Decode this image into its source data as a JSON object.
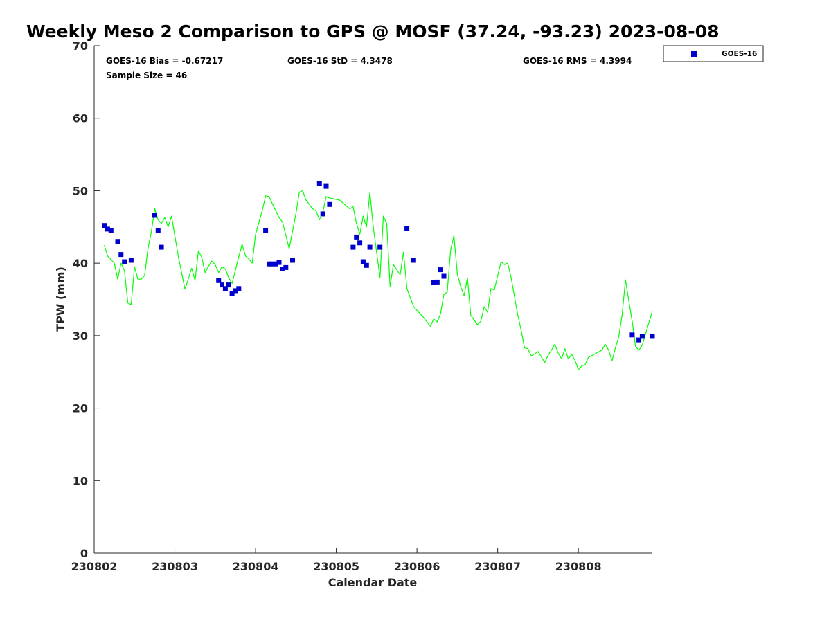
{
  "colors": {
    "gps_line": "#00ff00",
    "goes_marker": "#0000cc",
    "axis": "#262626"
  },
  "chart_data": {
    "type": "scatter",
    "title": "Weekly Meso 2 Comparison to GPS @ MOSF (37.24, -93.23) 2023-08-08",
    "xlabel": "Calendar Date",
    "ylabel": "TPW (mm)",
    "x_ticks": [
      "230802",
      "230803",
      "230804",
      "230805",
      "230806",
      "230807",
      "230808"
    ],
    "y_ticks": [
      "0",
      "10",
      "20",
      "30",
      "40",
      "50",
      "60",
      "70"
    ],
    "xlim": [
      "2023-08-02",
      "2023-08-08 22:00"
    ],
    "ylim": [
      0,
      70
    ],
    "stats": {
      "bias": "GOES-16 Bias = -0.67217",
      "std": "GOES-16 StD = 4.3478",
      "rms": "GOES-16 RMS = 4.3994",
      "sample": "Sample Size = 46"
    },
    "legend": {
      "position": "top-right",
      "entries": [
        "GOES-16"
      ]
    },
    "series": [
      {
        "name": "GOES-16",
        "kind": "scatter",
        "points": [
          [
            "2023-08-02 03:00",
            45.2
          ],
          [
            "2023-08-02 04:00",
            44.7
          ],
          [
            "2023-08-02 05:00",
            44.5
          ],
          [
            "2023-08-02 07:00",
            43.0
          ],
          [
            "2023-08-02 08:00",
            41.2
          ],
          [
            "2023-08-02 09:00",
            40.2
          ],
          [
            "2023-08-02 11:00",
            40.4
          ],
          [
            "2023-08-02 18:00",
            46.6
          ],
          [
            "2023-08-02 19:00",
            44.5
          ],
          [
            "2023-08-02 20:00",
            42.2
          ],
          [
            "2023-08-03 13:00",
            37.6
          ],
          [
            "2023-08-03 14:00",
            37.0
          ],
          [
            "2023-08-03 15:00",
            36.5
          ],
          [
            "2023-08-03 16:00",
            37.0
          ],
          [
            "2023-08-03 17:00",
            35.8
          ],
          [
            "2023-08-03 18:00",
            36.2
          ],
          [
            "2023-08-03 19:00",
            36.5
          ],
          [
            "2023-08-04 03:00",
            44.5
          ],
          [
            "2023-08-04 04:00",
            39.9
          ],
          [
            "2023-08-04 05:00",
            39.9
          ],
          [
            "2023-08-04 06:00",
            39.9
          ],
          [
            "2023-08-04 07:00",
            40.1
          ],
          [
            "2023-08-04 08:00",
            39.2
          ],
          [
            "2023-08-04 09:00",
            39.4
          ],
          [
            "2023-08-04 11:00",
            40.4
          ],
          [
            "2023-08-04 19:00",
            51.0
          ],
          [
            "2023-08-04 20:00",
            46.8
          ],
          [
            "2023-08-04 21:00",
            50.6
          ],
          [
            "2023-08-04 22:00",
            48.1
          ],
          [
            "2023-08-05 05:00",
            42.2
          ],
          [
            "2023-08-05 06:00",
            43.6
          ],
          [
            "2023-08-05 07:00",
            42.8
          ],
          [
            "2023-08-05 08:00",
            40.2
          ],
          [
            "2023-08-05 09:00",
            39.7
          ],
          [
            "2023-08-05 10:00",
            42.2
          ],
          [
            "2023-08-05 13:00",
            42.2
          ],
          [
            "2023-08-05 21:00",
            44.8
          ],
          [
            "2023-08-05 23:00",
            40.4
          ],
          [
            "2023-08-06 05:00",
            37.3
          ],
          [
            "2023-08-06 06:00",
            37.4
          ],
          [
            "2023-08-06 07:00",
            39.1
          ],
          [
            "2023-08-06 08:00",
            38.2
          ],
          [
            "2023-08-08 16:00",
            30.1
          ],
          [
            "2023-08-08 18:00",
            29.4
          ],
          [
            "2023-08-08 19:00",
            29.9
          ],
          [
            "2023-08-08 22:00",
            29.9
          ]
        ]
      },
      {
        "name": "",
        "kind": "line",
        "points": [
          [
            "2023-08-02 03:00",
            42.5
          ],
          [
            "2023-08-02 04:00",
            41.0
          ],
          [
            "2023-08-02 06:00",
            40.0
          ],
          [
            "2023-08-02 07:00",
            37.8
          ],
          [
            "2023-08-02 08:00",
            40.0
          ],
          [
            "2023-08-02 09:00",
            39.0
          ],
          [
            "2023-08-02 10:00",
            34.5
          ],
          [
            "2023-08-02 11:00",
            34.3
          ],
          [
            "2023-08-02 12:00",
            39.5
          ],
          [
            "2023-08-02 13:00",
            37.8
          ],
          [
            "2023-08-02 14:00",
            37.8
          ],
          [
            "2023-08-02 15:00",
            38.3
          ],
          [
            "2023-08-02 16:00",
            42.0
          ],
          [
            "2023-08-02 17:00",
            44.3
          ],
          [
            "2023-08-02 18:00",
            47.5
          ],
          [
            "2023-08-02 19:00",
            46.0
          ],
          [
            "2023-08-02 20:00",
            45.5
          ],
          [
            "2023-08-02 21:00",
            46.3
          ],
          [
            "2023-08-02 22:00",
            45.0
          ],
          [
            "2023-08-02 23:00",
            46.5
          ],
          [
            "2023-08-03 01:00",
            41.0
          ],
          [
            "2023-08-03 03:00",
            36.4
          ],
          [
            "2023-08-03 05:00",
            39.3
          ],
          [
            "2023-08-03 06:00",
            37.6
          ],
          [
            "2023-08-03 07:00",
            41.7
          ],
          [
            "2023-08-03 08:00",
            40.8
          ],
          [
            "2023-08-03 09:00",
            38.7
          ],
          [
            "2023-08-03 10:00",
            39.6
          ],
          [
            "2023-08-03 11:00",
            40.3
          ],
          [
            "2023-08-03 12:00",
            39.8
          ],
          [
            "2023-08-03 13:00",
            38.7
          ],
          [
            "2023-08-03 14:00",
            39.5
          ],
          [
            "2023-08-03 15:00",
            39.2
          ],
          [
            "2023-08-03 16:00",
            38.0
          ],
          [
            "2023-08-03 17:00",
            37.2
          ],
          [
            "2023-08-03 19:00",
            40.9
          ],
          [
            "2023-08-03 20:00",
            42.6
          ],
          [
            "2023-08-03 21:00",
            41.0
          ],
          [
            "2023-08-03 22:00",
            40.6
          ],
          [
            "2023-08-03 23:00",
            40.0
          ],
          [
            "2023-08-04 00:00",
            44.0
          ],
          [
            "2023-08-04 02:00",
            47.3
          ],
          [
            "2023-08-04 03:00",
            49.3
          ],
          [
            "2023-08-04 04:00",
            49.2
          ],
          [
            "2023-08-04 05:00",
            48.2
          ],
          [
            "2023-08-04 07:00",
            46.3
          ],
          [
            "2023-08-04 08:00",
            45.7
          ],
          [
            "2023-08-04 10:00",
            42.0
          ],
          [
            "2023-08-04 12:00",
            46.8
          ],
          [
            "2023-08-04 13:00",
            49.8
          ],
          [
            "2023-08-04 14:00",
            50.0
          ],
          [
            "2023-08-04 15:00",
            48.7
          ],
          [
            "2023-08-04 17:00",
            47.5
          ],
          [
            "2023-08-04 18:00",
            47.2
          ],
          [
            "2023-08-04 19:00",
            46.0
          ],
          [
            "2023-08-04 20:00",
            47.0
          ],
          [
            "2023-08-04 21:00",
            49.2
          ],
          [
            "2023-08-04 22:00",
            49.0
          ],
          [
            "2023-08-05 01:00",
            48.7
          ],
          [
            "2023-08-05 04:00",
            47.5
          ],
          [
            "2023-08-05 05:00",
            47.8
          ],
          [
            "2023-08-05 06:00",
            45.5
          ],
          [
            "2023-08-05 07:00",
            44.0
          ],
          [
            "2023-08-05 08:00",
            46.5
          ],
          [
            "2023-08-05 09:00",
            45.0
          ],
          [
            "2023-08-05 10:00",
            49.8
          ],
          [
            "2023-08-05 11:00",
            45.0
          ],
          [
            "2023-08-05 12:00",
            41.5
          ],
          [
            "2023-08-05 13:00",
            38.0
          ],
          [
            "2023-08-05 14:00",
            46.5
          ],
          [
            "2023-08-05 15:00",
            45.5
          ],
          [
            "2023-08-05 16:00",
            36.8
          ],
          [
            "2023-08-05 17:00",
            39.8
          ],
          [
            "2023-08-05 19:00",
            38.4
          ],
          [
            "2023-08-05 20:00",
            41.5
          ],
          [
            "2023-08-05 21:00",
            36.5
          ],
          [
            "2023-08-05 23:00",
            34.0
          ],
          [
            "2023-08-06 02:00",
            32.5
          ],
          [
            "2023-08-06 04:00",
            31.3
          ],
          [
            "2023-08-06 05:00",
            32.3
          ],
          [
            "2023-08-06 06:00",
            31.9
          ],
          [
            "2023-08-06 07:00",
            33.0
          ],
          [
            "2023-08-06 08:00",
            35.7
          ],
          [
            "2023-08-06 09:00",
            36.0
          ],
          [
            "2023-08-06 10:00",
            41.8
          ],
          [
            "2023-08-06 11:00",
            43.8
          ],
          [
            "2023-08-06 12:00",
            38.5
          ],
          [
            "2023-08-06 13:00",
            36.8
          ],
          [
            "2023-08-06 14:00",
            35.5
          ],
          [
            "2023-08-06 15:00",
            38.0
          ],
          [
            "2023-08-06 16:00",
            32.8
          ],
          [
            "2023-08-06 18:00",
            31.5
          ],
          [
            "2023-08-06 19:00",
            32.0
          ],
          [
            "2023-08-06 20:00",
            34.0
          ],
          [
            "2023-08-06 21:00",
            33.2
          ],
          [
            "2023-08-06 22:00",
            36.5
          ],
          [
            "2023-08-06 23:00",
            36.3
          ],
          [
            "2023-08-07 01:00",
            40.2
          ],
          [
            "2023-08-07 02:00",
            39.8
          ],
          [
            "2023-08-07 03:00",
            40.0
          ],
          [
            "2023-08-07 04:00",
            38.0
          ],
          [
            "2023-08-07 06:00",
            32.8
          ],
          [
            "2023-08-07 07:00",
            30.7
          ],
          [
            "2023-08-07 08:00",
            28.3
          ],
          [
            "2023-08-07 09:00",
            28.2
          ],
          [
            "2023-08-07 10:00",
            27.2
          ],
          [
            "2023-08-07 12:00",
            27.8
          ],
          [
            "2023-08-07 14:00",
            26.3
          ],
          [
            "2023-08-07 15:00",
            27.3
          ],
          [
            "2023-08-07 16:00",
            28.0
          ],
          [
            "2023-08-07 17:00",
            28.8
          ],
          [
            "2023-08-07 18:00",
            27.6
          ],
          [
            "2023-08-07 19:00",
            26.8
          ],
          [
            "2023-08-07 20:00",
            28.2
          ],
          [
            "2023-08-07 21:00",
            26.8
          ],
          [
            "2023-08-07 22:00",
            27.4
          ],
          [
            "2023-08-07 23:00",
            26.6
          ],
          [
            "2023-08-08 00:00",
            25.3
          ],
          [
            "2023-08-08 01:00",
            25.8
          ],
          [
            "2023-08-08 02:00",
            26.0
          ],
          [
            "2023-08-08 03:00",
            27.0
          ],
          [
            "2023-08-08 05:00",
            27.5
          ],
          [
            "2023-08-08 07:00",
            28.0
          ],
          [
            "2023-08-08 08:00",
            28.8
          ],
          [
            "2023-08-08 09:00",
            28.0
          ],
          [
            "2023-08-08 10:00",
            26.5
          ],
          [
            "2023-08-08 11:00",
            28.3
          ],
          [
            "2023-08-08 12:00",
            29.8
          ],
          [
            "2023-08-08 13:00",
            32.8
          ],
          [
            "2023-08-08 14:00",
            37.7
          ],
          [
            "2023-08-08 15:00",
            34.8
          ],
          [
            "2023-08-08 16:00",
            32.0
          ],
          [
            "2023-08-08 17:00",
            28.5
          ],
          [
            "2023-08-08 18:00",
            28.0
          ],
          [
            "2023-08-08 19:00",
            28.7
          ],
          [
            "2023-08-08 21:00",
            31.8
          ],
          [
            "2023-08-08 22:00",
            33.4
          ]
        ]
      }
    ]
  }
}
